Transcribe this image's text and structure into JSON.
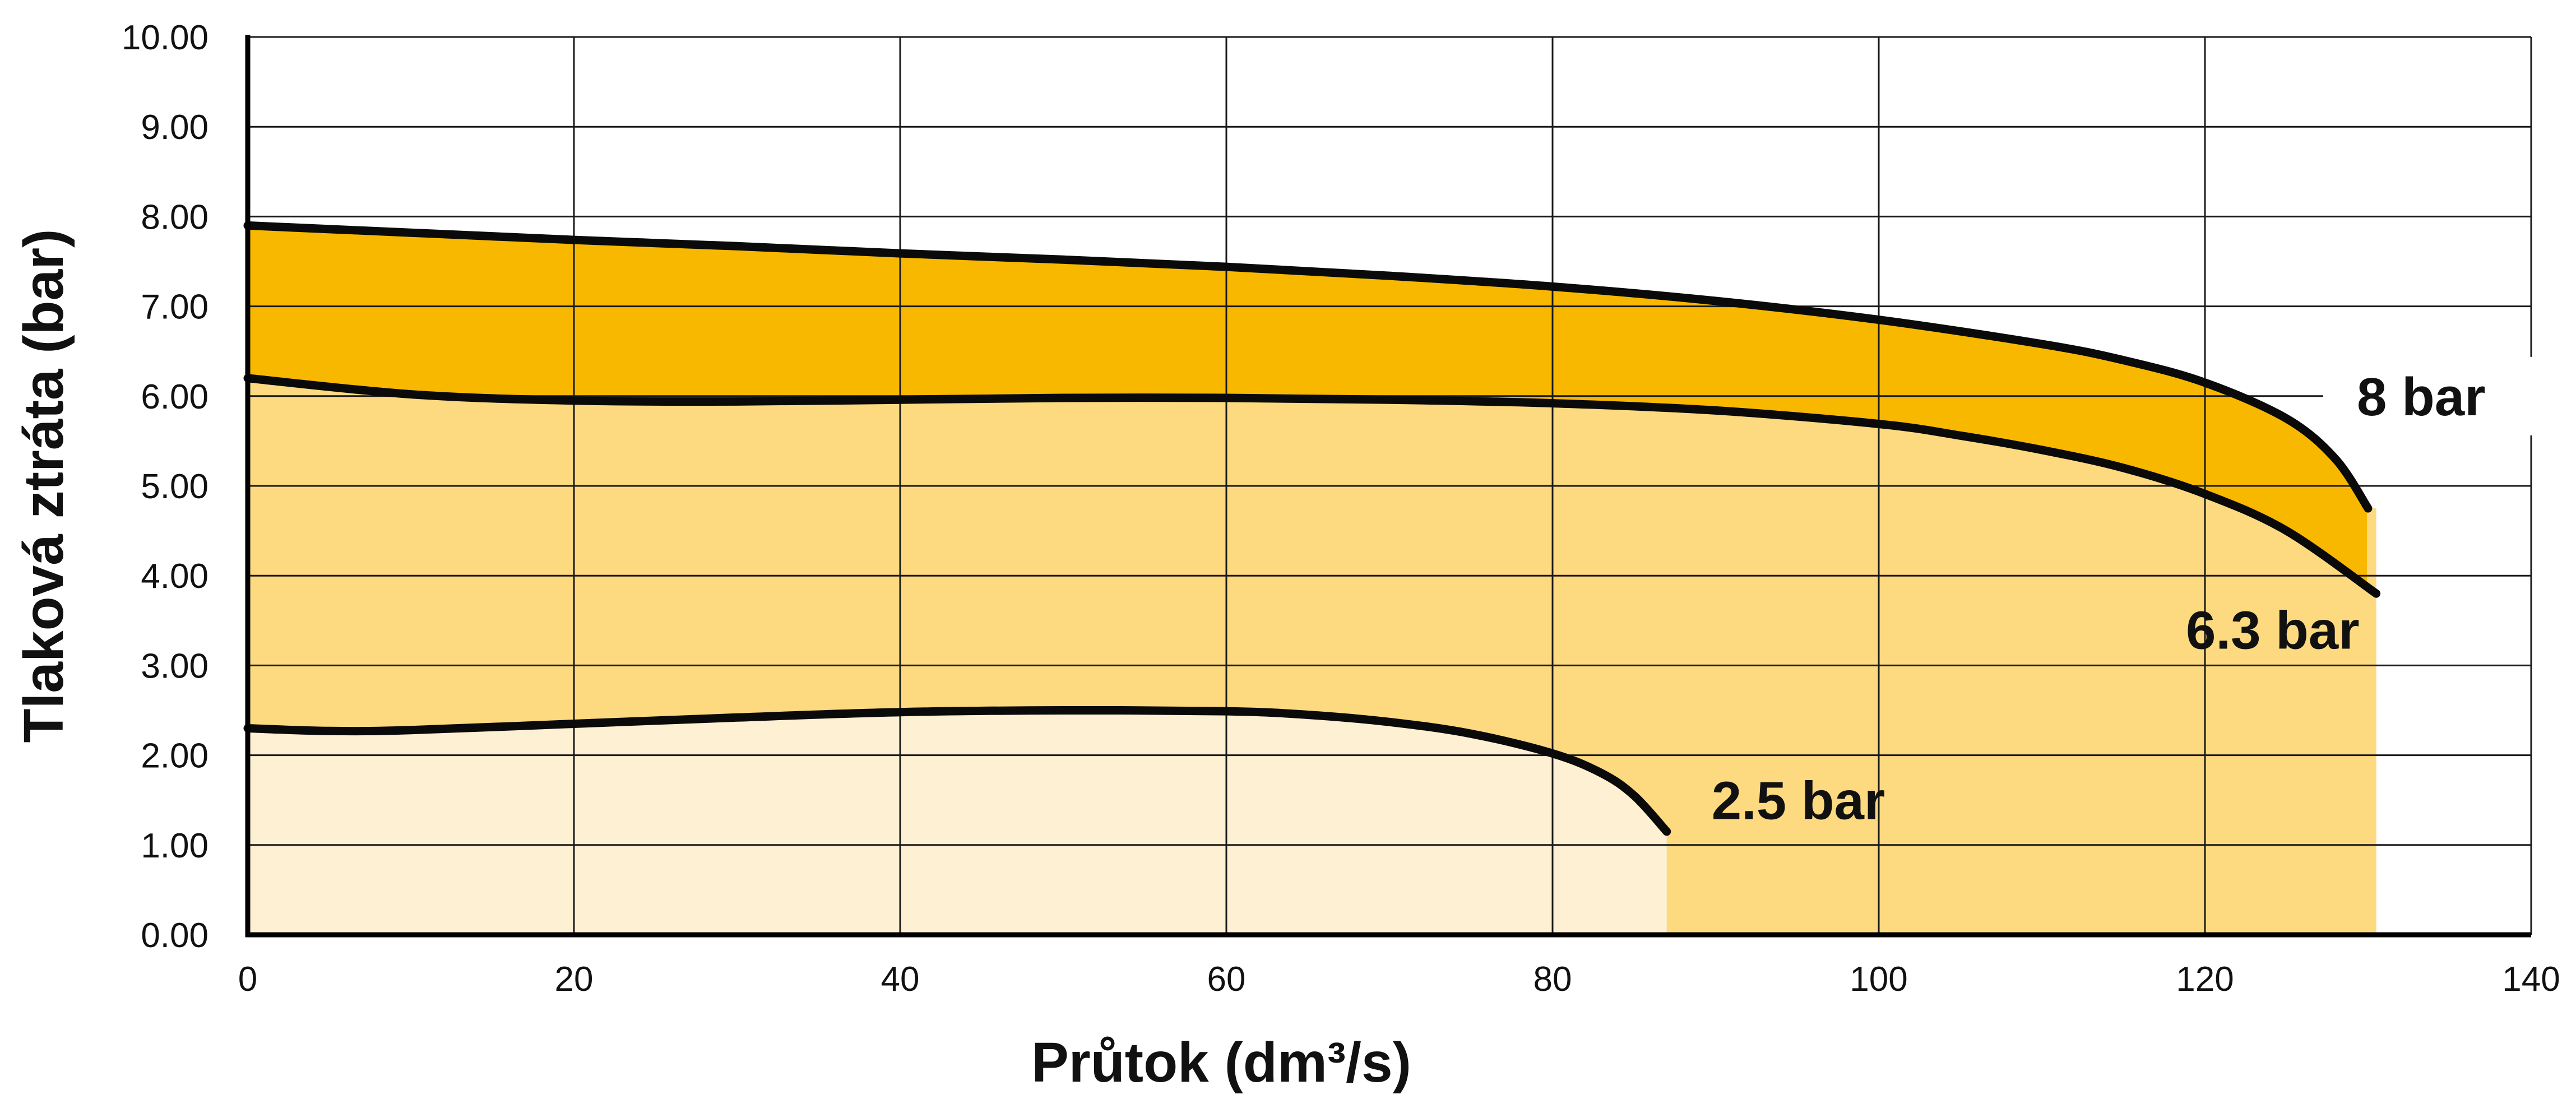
{
  "chart_data": {
    "type": "area",
    "xlabel": "Průtok (dm³/s)",
    "ylabel": "Tlaková ztráta (bar)",
    "xlim": [
      0,
      140
    ],
    "ylim": [
      0,
      10
    ],
    "x_ticks": [
      "0",
      "20",
      "40",
      "60",
      "80",
      "100",
      "120",
      "140"
    ],
    "y_ticks": [
      "0.00",
      "1.00",
      "2.00",
      "3.00",
      "4.00",
      "5.00",
      "6.00",
      "7.00",
      "8.00",
      "9.00",
      "10.00"
    ],
    "grid": true,
    "legend": "none",
    "colors": {
      "band_8bar": "#F9B800",
      "band_6_3bar": "#FDDA80",
      "band_2_5bar": "#FEF0D2",
      "curve": "#0a0a0a",
      "grid": "#1a1a1a"
    },
    "series": [
      {
        "name": "8 bar",
        "x": [
          0,
          10,
          20,
          30,
          40,
          50,
          60,
          70,
          80,
          90,
          100,
          110,
          115,
          120,
          125,
          128,
          130
        ],
        "y": [
          7.9,
          7.82,
          7.74,
          7.67,
          7.59,
          7.52,
          7.44,
          7.34,
          7.22,
          7.06,
          6.85,
          6.58,
          6.4,
          6.15,
          5.75,
          5.3,
          4.75
        ]
      },
      {
        "name": "6.3 bar",
        "x": [
          0,
          10,
          20,
          30,
          40,
          50,
          60,
          70,
          80,
          90,
          100,
          105,
          110,
          115,
          120,
          125,
          130.5
        ],
        "y": [
          6.2,
          6.02,
          5.95,
          5.94,
          5.96,
          5.98,
          5.98,
          5.96,
          5.92,
          5.84,
          5.69,
          5.56,
          5.4,
          5.2,
          4.91,
          4.5,
          3.8
        ]
      },
      {
        "name": "2.5 bar",
        "x": [
          0,
          5,
          10,
          20,
          30,
          40,
          50,
          60,
          65,
          70,
          75,
          80,
          83,
          85,
          87
        ],
        "y": [
          2.3,
          2.27,
          2.28,
          2.35,
          2.42,
          2.48,
          2.5,
          2.49,
          2.45,
          2.37,
          2.24,
          2.02,
          1.8,
          1.55,
          1.15
        ]
      }
    ],
    "curve_labels": [
      "8 bar",
      "6.3 bar",
      "2.5 bar"
    ]
  }
}
